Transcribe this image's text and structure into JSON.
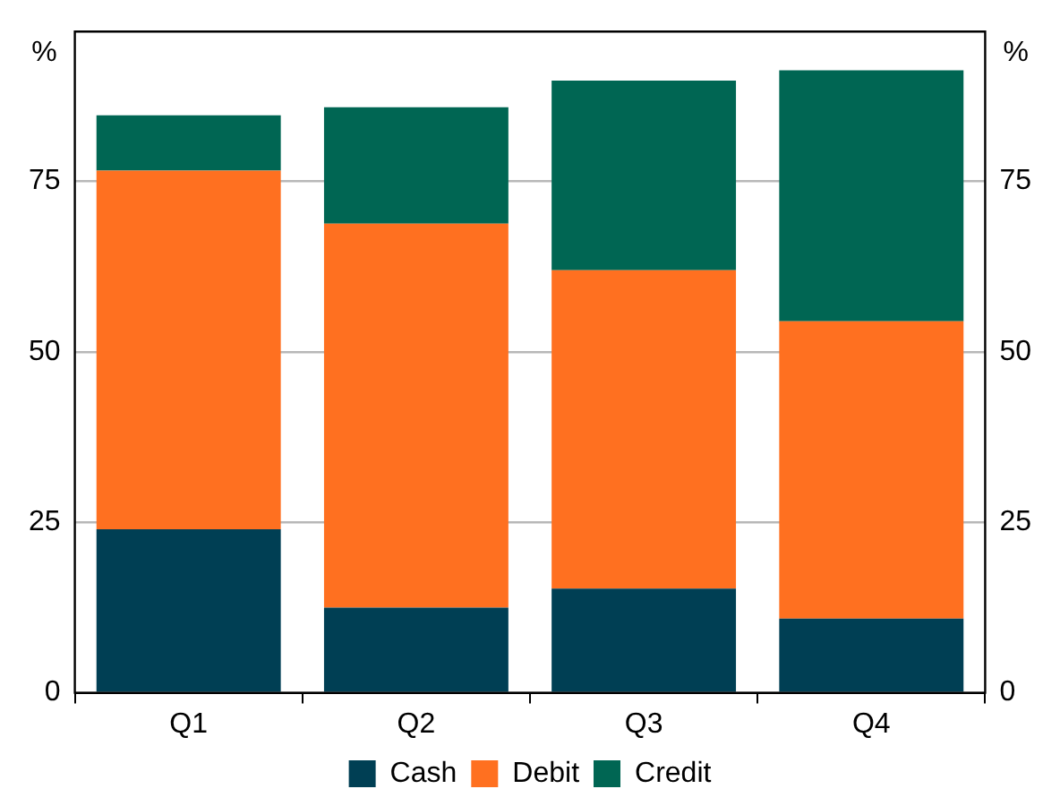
{
  "chart_data": {
    "type": "bar",
    "stacked": true,
    "categories": [
      "Q1",
      "Q2",
      "Q3",
      "Q4"
    ],
    "series": [
      {
        "name": "Cash",
        "color": "#003f54",
        "values": [
          24,
          12.5,
          15.3,
          10.9
        ]
      },
      {
        "name": "Debit",
        "color": "#ff7020",
        "values": [
          52.6,
          56.3,
          46.7,
          43.6
        ]
      },
      {
        "name": "Credit",
        "color": "#006653",
        "values": [
          8.1,
          17.1,
          27.8,
          36.8
        ]
      }
    ],
    "ylabel": "%",
    "y2label": "%",
    "ylim": [
      0,
      97
    ],
    "yticks": [
      0,
      25,
      50,
      75
    ],
    "y2lim": [
      0,
      97
    ],
    "y2ticks": [
      0,
      25,
      50,
      75
    ],
    "grid": "y",
    "legend": "bottom"
  }
}
